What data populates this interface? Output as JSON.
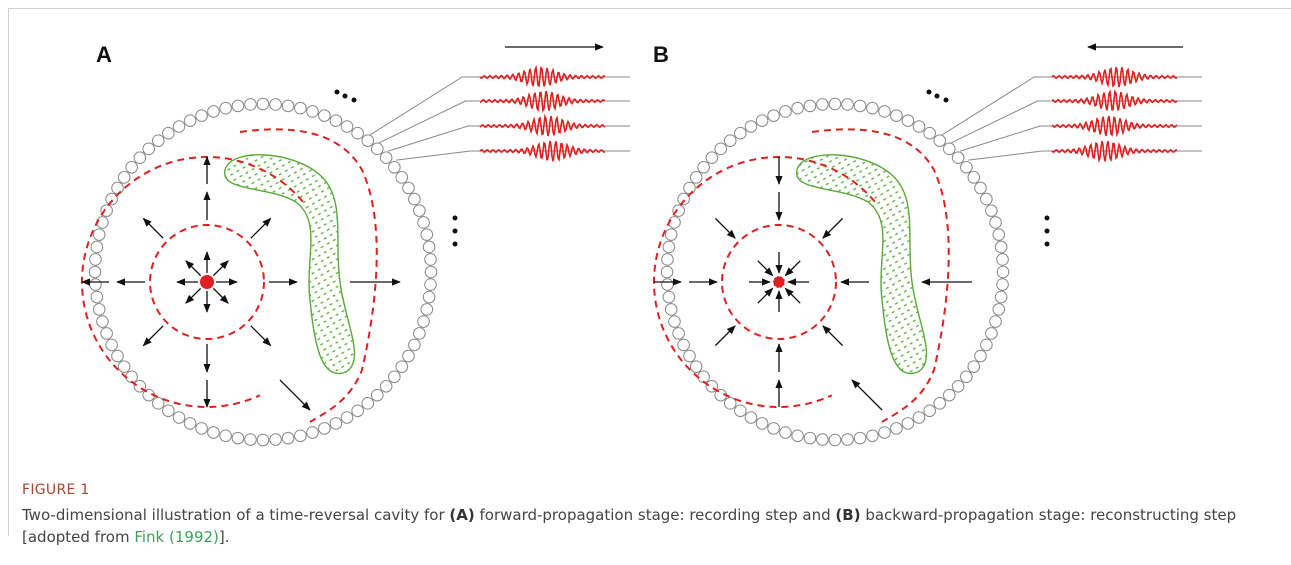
{
  "figure": {
    "panels": [
      {
        "label": "A"
      },
      {
        "label": "B"
      }
    ],
    "caption": {
      "label": "FIGURE 1",
      "segments": [
        "Two-dimensional illustration of a time-reversal cavity for ",
        "(A)",
        " forward-propagation stage: recording step and ",
        "(B)",
        " backward-propagation stage: reconstructing step [adopted from ",
        "Fink (1992)",
        "]."
      ]
    }
  }
}
